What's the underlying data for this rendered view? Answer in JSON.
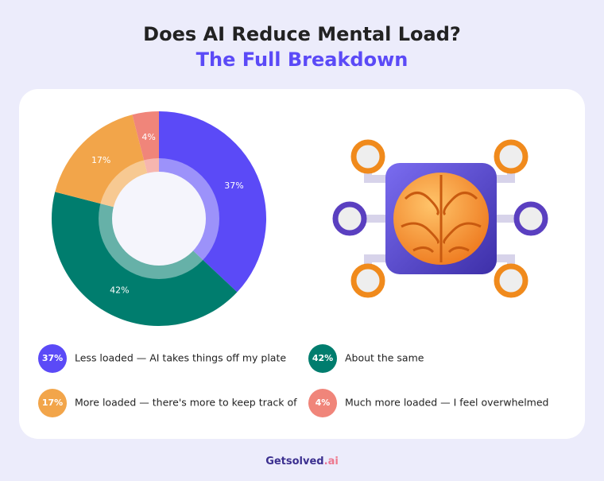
{
  "chart_data": {
    "type": "pie",
    "title": "Does AI Reduce Mental Load?",
    "subtitle": "The Full Breakdown",
    "categories": [
      "Less loaded — AI takes things off my plate",
      "About the same",
      "More loaded — there's more to keep track of",
      "Much more loaded — I feel overwhelmed"
    ],
    "values": [
      37,
      42,
      17,
      4
    ],
    "value_labels": [
      "37%",
      "42%",
      "17%",
      "4%"
    ],
    "colors": [
      "#5b4af7",
      "#007d6e",
      "#f2a54a",
      "#f0857a"
    ]
  },
  "footer": {
    "brand": "Getsolved",
    "suffix": ".ai"
  }
}
